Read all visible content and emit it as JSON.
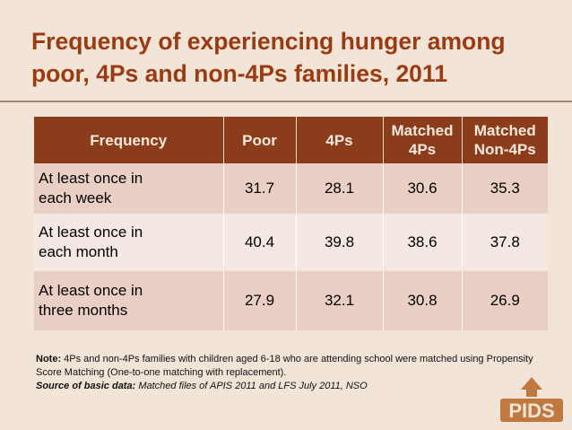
{
  "slide": {
    "title_line1": "Frequency of experiencing hunger among",
    "title_line2": "poor, 4Ps and non-4Ps families, 2011"
  },
  "table": {
    "headers": {
      "frequency": "Frequency",
      "poor": "Poor",
      "fourps": "4Ps",
      "matched_4ps_line1": "Matched",
      "matched_4ps_line2": "4Ps",
      "matched_non4ps_line1": "Matched",
      "matched_non4ps_line2": "Non-4Ps"
    },
    "rows": [
      {
        "label_line1": "At least once in",
        "label_line2": "each week",
        "poor": "31.7",
        "fourps": "28.1",
        "matched_4ps": "30.6",
        "matched_non4ps": "35.3"
      },
      {
        "label_line1": "At least once in",
        "label_line2": "each month",
        "poor": "40.4",
        "fourps": "39.8",
        "matched_4ps": "38.6",
        "matched_non4ps": "37.8"
      },
      {
        "label_line1": "At least once in",
        "label_line2": "three months",
        "poor": "27.9",
        "fourps": "32.1",
        "matched_4ps": "30.8",
        "matched_non4ps": "26.9"
      }
    ]
  },
  "note": {
    "label": "Note:",
    "text": " 4Ps and non-4Ps families with children aged 6-18 who are attending school were matched using Propensity Score Matching (One-to-one matching with replacement).",
    "source_label": "Source of basic data:",
    "source_text": " Matched files of APIS 2011 and LFS July 2011, NSO"
  },
  "logo": {
    "text": "PIDS"
  },
  "colors": {
    "background": "#f3e4d8",
    "title": "#9a3b13",
    "header_bg": "#8b3d1b",
    "row_dark": "#ead0c4",
    "row_light": "#f5e8e3",
    "logo": "#c0793f"
  }
}
